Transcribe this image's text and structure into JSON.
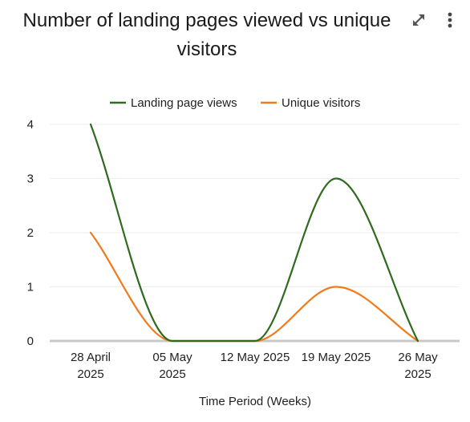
{
  "header": {
    "title_line1": "Number of landing pages viewed vs unique",
    "title_line2": "visitors",
    "expand_icon": "expand-arrows-icon",
    "menu_icon": "kebab-menu-icon"
  },
  "chart_data": {
    "type": "line",
    "title": "Number of landing pages viewed vs unique visitors",
    "xlabel": "Time Period (Weeks)",
    "ylabel": "",
    "categories": [
      [
        "28 April",
        "2025"
      ],
      [
        "05 May",
        "2025"
      ],
      [
        "12 May 2025"
      ],
      [
        "19 May 2025"
      ],
      [
        "26 May",
        "2025"
      ]
    ],
    "series": [
      {
        "name": "Landing page views",
        "values": [
          4,
          0,
          0,
          3,
          0
        ],
        "color": "#2e6b1f"
      },
      {
        "name": "Unique visitors",
        "values": [
          2,
          0,
          0,
          1,
          0
        ],
        "color": "#f07b1a"
      }
    ],
    "ylim": [
      0,
      4
    ],
    "yticks": [
      0,
      1,
      2,
      3,
      4
    ],
    "grid": true,
    "legend": "top-center"
  }
}
